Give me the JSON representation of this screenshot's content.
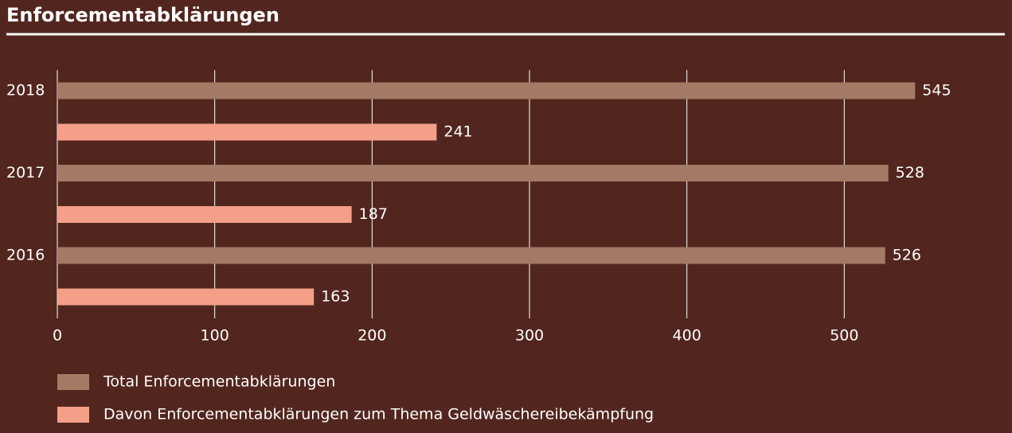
{
  "chart_data": {
    "type": "bar",
    "orientation": "horizontal",
    "title": "Enforcementabklärungen",
    "categories": [
      "2018",
      "2017",
      "2016"
    ],
    "series": [
      {
        "name": "Total Enforcementabklärungen",
        "color": "#a57a65",
        "values": [
          545,
          528,
          526
        ]
      },
      {
        "name": "Davon Enforcementabklärungen zum Thema Geldwäschereibekämpfung",
        "color": "#f4a088",
        "values": [
          241,
          187,
          163
        ]
      }
    ],
    "xlim": [
      0,
      600
    ],
    "xticks": [
      0,
      100,
      200,
      300,
      400,
      500
    ],
    "grid": true,
    "legend": "bottom-left"
  }
}
